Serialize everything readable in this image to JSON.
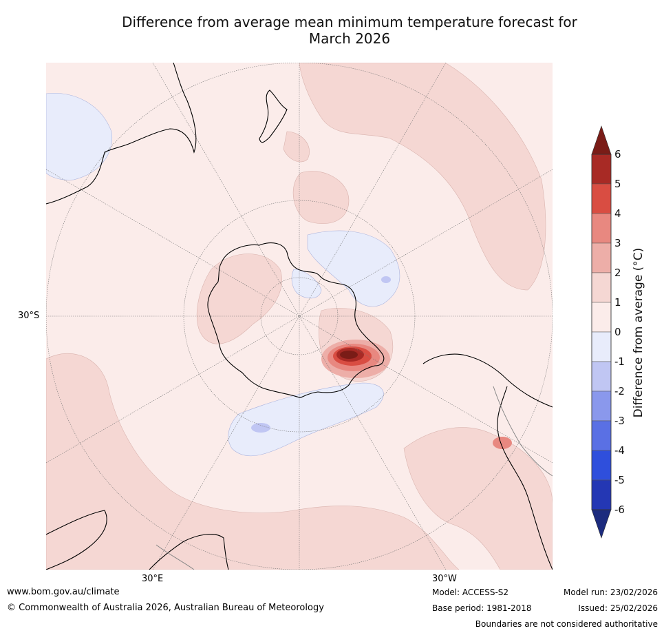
{
  "title_line1": "Difference from average mean minimum temperature forecast for",
  "title_line2": "March 2026",
  "axis_ticks": {
    "lat_left": "30°S",
    "lon_bottom_left": "30°E",
    "lon_bottom_right": "30°W"
  },
  "colorbar": {
    "label": "Difference from average (°C)",
    "ticks": [
      "6",
      "5",
      "4",
      "3",
      "2",
      "1",
      "0",
      "-1",
      "-2",
      "-3",
      "-4",
      "-5",
      "-6"
    ],
    "colors": {
      "above_6": "#7a1c17",
      "5_to_6": "#a82a25",
      "4_to_5": "#d94d42",
      "3_to_4": "#e88880",
      "2_to_3": "#edaea8",
      "1_to_2": "#f5d7d3",
      "0_to_1": "#fbecea",
      "m1_to_0": "#e8ecfb",
      "m2_to_m1": "#c0c6f3",
      "m3_to_m2": "#8a98ec",
      "m4_to_m3": "#5a70e4",
      "m5_to_m4": "#2f4fdc",
      "m6_to_m5": "#2437b4",
      "below_m6": "#1c2b7e"
    }
  },
  "footer": {
    "website": "www.bom.gov.au/climate",
    "copyright": "© Commonwealth of Australia 2026, Australian Bureau of Meteorology",
    "model": "Model: ACCESS-S2",
    "base_period": "Base period: 1981-2018",
    "model_run": "Model run: 23/02/2026",
    "issued": "Issued: 25/02/2026",
    "disclaimer": "Boundaries are not considered authoritative"
  }
}
